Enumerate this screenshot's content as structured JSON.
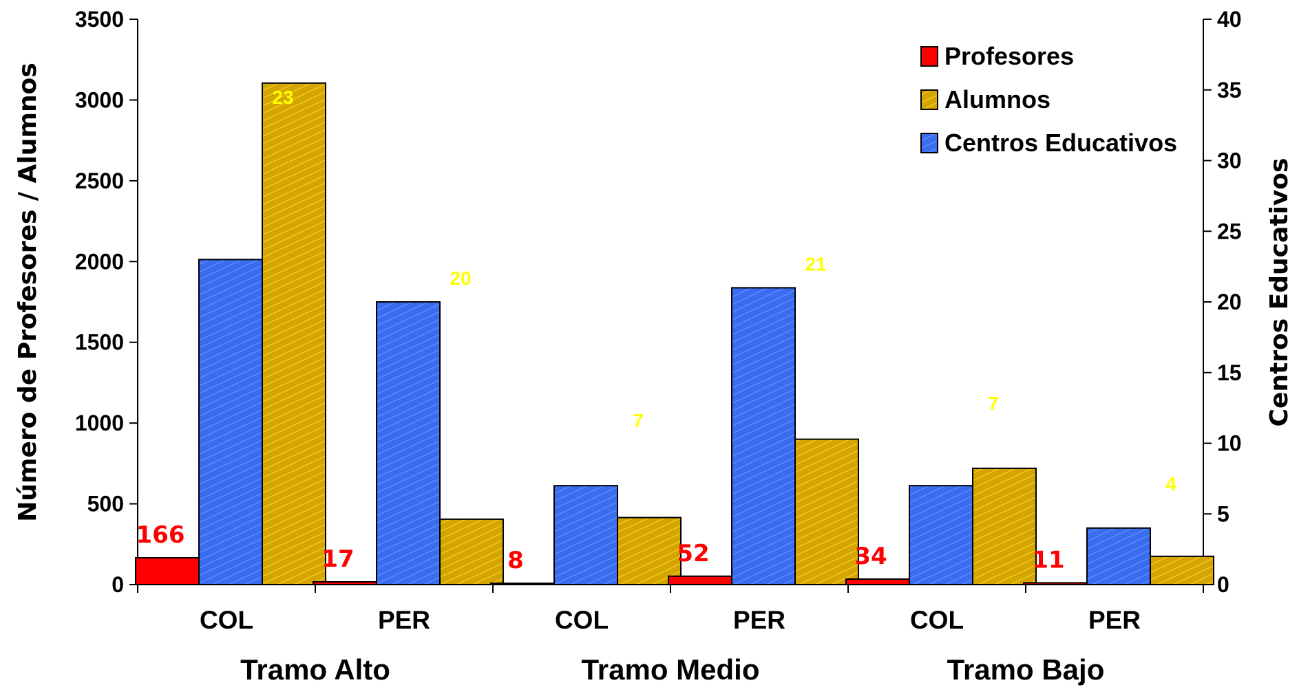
{
  "chart_data": {
    "type": "bar",
    "y_left_label": "Número de Profesores / Alumnos",
    "y_right_label": "Centros Educativos",
    "ylim_left": [
      0,
      3500
    ],
    "ylim_right": [
      0,
      40
    ],
    "y_left_ticks": [
      "0",
      "500",
      "1000",
      "1500",
      "2000",
      "2500",
      "3000",
      "3500"
    ],
    "y_right_ticks": [
      "0",
      "5",
      "10",
      "15",
      "20",
      "25",
      "30",
      "35",
      "40"
    ],
    "categories": [
      "COL",
      "PER",
      "COL",
      "PER",
      "COL",
      "PER"
    ],
    "groups": [
      "Tramo Alto",
      "Tramo Medio",
      "Tramo Bajo"
    ],
    "series": [
      {
        "name": "Profesores",
        "axis": "left",
        "values": [
          166,
          17,
          8,
          52,
          34,
          11
        ],
        "labels": [
          "166",
          "17",
          "8",
          "52",
          "34",
          "11"
        ]
      },
      {
        "name": "Alumnos",
        "axis": "left",
        "values": [
          3105,
          405,
          415,
          900,
          720,
          175
        ]
      },
      {
        "name": "Centros Educativos",
        "axis": "right",
        "values": [
          23,
          20,
          7,
          21,
          7,
          4
        ],
        "labels": [
          "23",
          "20",
          "7",
          "21",
          "7",
          "4"
        ]
      }
    ],
    "legend": [
      "Profesores",
      "Alumnos",
      "Centros Educativos"
    ],
    "legend_position": "top-right",
    "grid": false
  },
  "colors": {
    "profesores": "#ff0000",
    "alumnos": "#e6b800",
    "centros": "#3366ff",
    "profesores_label": "#ff0000",
    "centros_label": "#ffff00"
  }
}
